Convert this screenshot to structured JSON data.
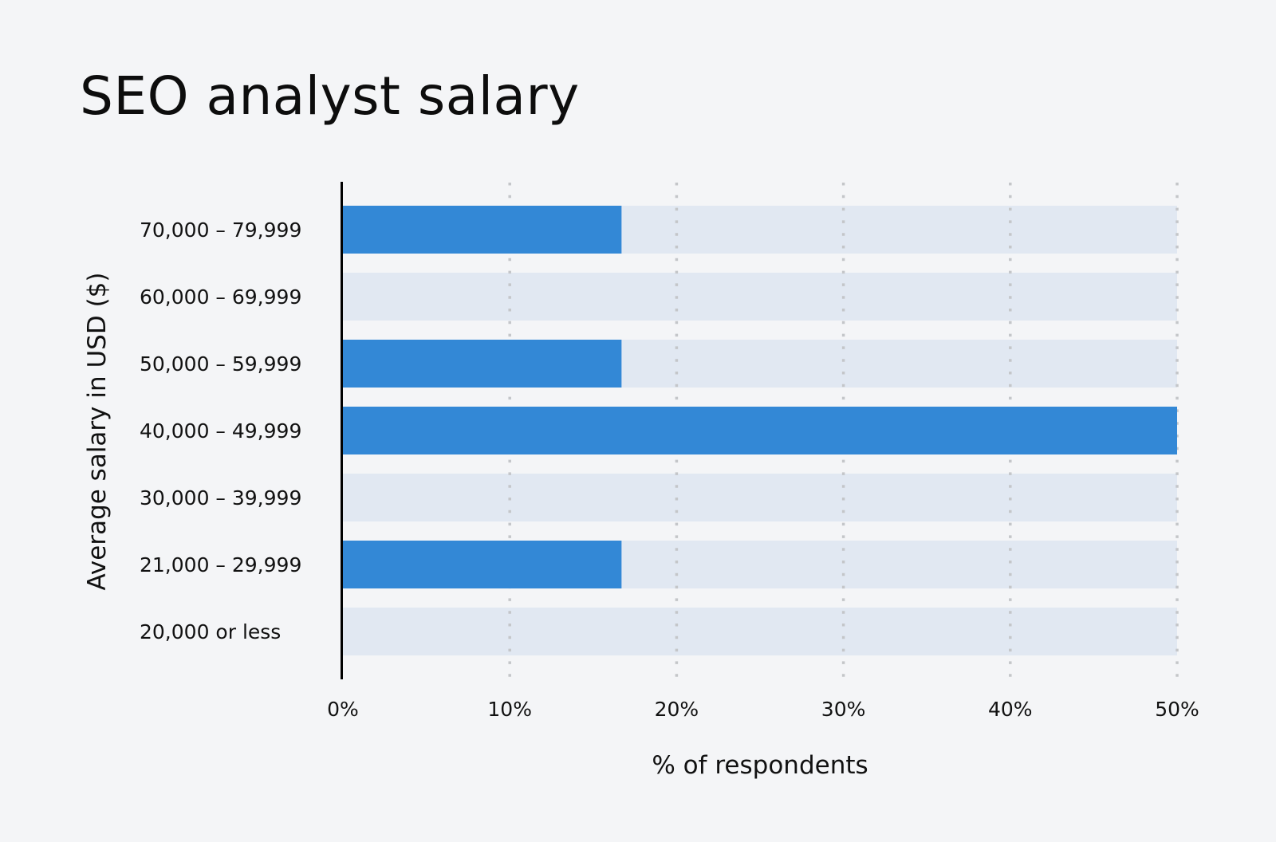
{
  "chart_data": {
    "type": "bar",
    "orientation": "horizontal",
    "title": "SEO analyst salary",
    "xlabel": "% of respondents",
    "ylabel": "Average salary in USD ($)",
    "categories": [
      "70,000 – 79,999",
      "60,000 – 69,999",
      "50,000 – 59,999",
      "40,000 – 49,999",
      "30,000 – 39,999",
      "21,000 – 29,999",
      "20,000 or less"
    ],
    "values": [
      16.7,
      0,
      16.7,
      50,
      0,
      16.7,
      0
    ],
    "xlim": [
      0,
      50
    ],
    "xticks": [
      "0%",
      "10%",
      "20%",
      "30%",
      "40%",
      "50%"
    ],
    "grid": "vertical dotted",
    "colors": {
      "bar": "#3388d6",
      "track": "#e1e8f2",
      "grid": "#c4c6c9",
      "background": "#f4f5f7"
    }
  }
}
